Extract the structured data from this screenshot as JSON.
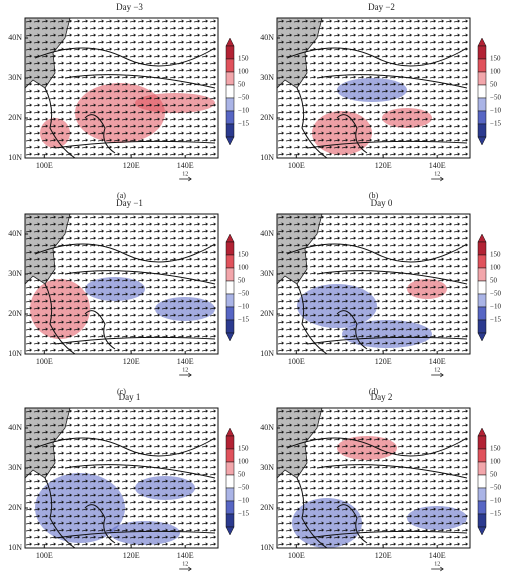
{
  "axes": {
    "yticks": [
      "40N",
      "30N",
      "20N",
      "10N"
    ],
    "xticks": [
      "100E",
      "120E",
      "140E"
    ],
    "colorbar": [
      "150",
      "100",
      "50",
      "−50",
      "−10",
      "−15"
    ],
    "reference_vector": "12"
  },
  "panels": [
    {
      "title": "Day −3",
      "label": "(a)"
    },
    {
      "title": "Day −2",
      "label": "(b)"
    },
    {
      "title": "Day −1",
      "label": "(c)"
    },
    {
      "title": "Day 0",
      "label": "(d)"
    },
    {
      "title": "Day 1",
      "label": "(e)"
    },
    {
      "title": "Day 2",
      "label": "(f)"
    }
  ]
}
